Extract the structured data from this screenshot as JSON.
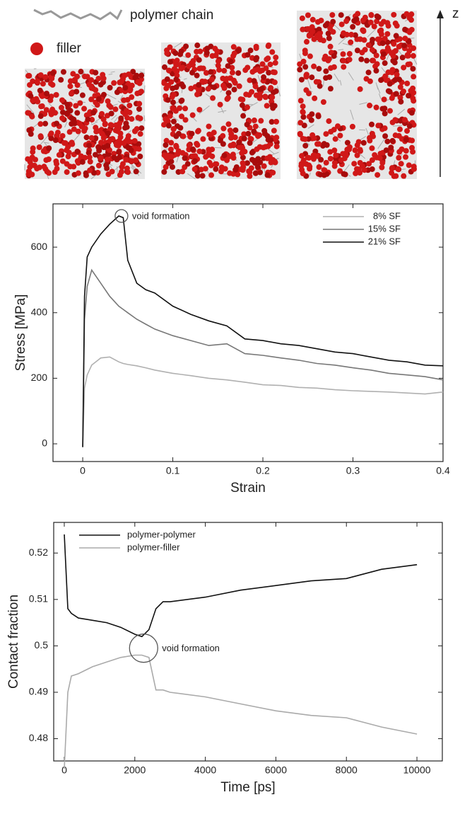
{
  "panel": {
    "polymer_label": "polymer chain",
    "filler_label": "filler",
    "axis_label": "z"
  },
  "chart_data": [
    {
      "type": "line",
      "x_label": "Strain",
      "y_label": "Stress [MPa]",
      "x": [
        0,
        0.002,
        0.005,
        0.01,
        0.02,
        0.03,
        0.04,
        0.045,
        0.05,
        0.06,
        0.07,
        0.08,
        0.1,
        0.12,
        0.14,
        0.16,
        0.18,
        0.2,
        0.22,
        0.24,
        0.26,
        0.28,
        0.3,
        0.32,
        0.34,
        0.36,
        0.38,
        0.4
      ],
      "series": [
        {
          "name": "8% SF",
          "color": "#b0b0b0",
          "values": [
            -10,
            170,
            210,
            240,
            262,
            265,
            250,
            245,
            242,
            238,
            232,
            225,
            215,
            208,
            200,
            195,
            188,
            180,
            178,
            172,
            170,
            165,
            162,
            160,
            158,
            155,
            152,
            158
          ]
        },
        {
          "name": "15% SF",
          "color": "#777777",
          "values": [
            -10,
            380,
            480,
            530,
            490,
            450,
            420,
            410,
            400,
            380,
            365,
            350,
            330,
            315,
            300,
            305,
            275,
            270,
            262,
            255,
            245,
            240,
            232,
            225,
            215,
            210,
            205,
            195
          ]
        },
        {
          "name": "21% SF",
          "color": "#111111",
          "values": [
            -10,
            450,
            570,
            600,
            640,
            670,
            695,
            690,
            560,
            490,
            470,
            460,
            420,
            395,
            375,
            360,
            320,
            315,
            305,
            300,
            290,
            280,
            275,
            265,
            255,
            250,
            240,
            238
          ]
        }
      ],
      "xlim": [
        -0.033,
        0.4
      ],
      "ylim": [
        -54,
        732
      ],
      "xticks": [
        0,
        0.1,
        0.2,
        0.3,
        0.4
      ],
      "yticks": [
        0,
        200,
        400,
        600
      ],
      "legend": "upper right",
      "annotation": {
        "text": "void formation",
        "x": 0.043,
        "y": 695
      }
    },
    {
      "type": "line",
      "x_label": "Time [ps]",
      "y_label": "Contact fraction",
      "x": [
        0,
        100,
        200,
        400,
        800,
        1200,
        1600,
        2000,
        2200,
        2400,
        2600,
        2800,
        3000,
        4000,
        5000,
        6000,
        7000,
        8000,
        9000,
        10000
      ],
      "series": [
        {
          "name": "polymer-polymer",
          "color": "#111111",
          "values": [
            0.524,
            0.508,
            0.507,
            0.506,
            0.5055,
            0.505,
            0.504,
            0.5025,
            0.502,
            0.5035,
            0.508,
            0.5095,
            0.5095,
            0.5105,
            0.512,
            0.513,
            0.514,
            0.5145,
            0.5165,
            0.5175
          ]
        },
        {
          "name": "polymer-filler",
          "color": "#aaaaaa",
          "values": [
            0.4735,
            0.49,
            0.4935,
            0.494,
            0.4955,
            0.4965,
            0.4975,
            0.498,
            0.498,
            0.4975,
            0.4905,
            0.4905,
            0.49,
            0.489,
            0.4875,
            0.486,
            0.485,
            0.4845,
            0.4825,
            0.481
          ]
        }
      ],
      "xlim": [
        -300,
        10720
      ],
      "ylim": [
        0.4752,
        0.5266
      ],
      "xticks": [
        0,
        2000,
        4000,
        6000,
        8000,
        10000
      ],
      "yticks": [
        0.48,
        0.49,
        0.5,
        0.51,
        0.52
      ],
      "legend": "upper left",
      "annotation": {
        "text": "void formation",
        "x": 2250,
        "y": 0.4995
      }
    }
  ]
}
